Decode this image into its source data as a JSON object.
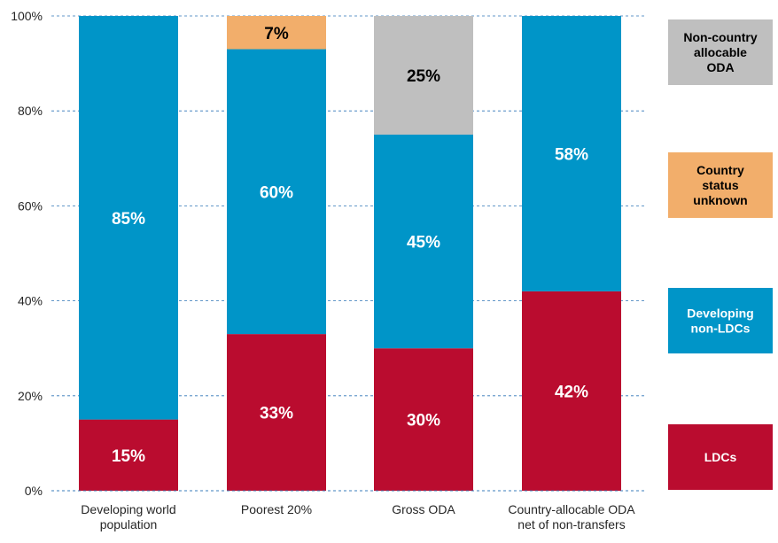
{
  "chart_data": {
    "type": "bar",
    "stacked": true,
    "title": "",
    "xlabel": "",
    "ylabel": "",
    "ylim": [
      0,
      100
    ],
    "yticks": [
      "0%",
      "20%",
      "40%",
      "60%",
      "80%",
      "100%"
    ],
    "grid": "dashed horizontal",
    "legend_position": "right",
    "categories": [
      [
        "Developing world",
        "population"
      ],
      [
        "Poorest 20%"
      ],
      [
        "Gross ODA"
      ],
      [
        "Country-allocable ODA",
        "net of non-transfers"
      ]
    ],
    "series": [
      {
        "name": "LDCs",
        "color": "#BA0C2F",
        "text_color": "#ffffff",
        "values": [
          15,
          33,
          30,
          42
        ],
        "labels": [
          "15%",
          "33%",
          "30%",
          "42%"
        ]
      },
      {
        "name": "Developing non-LDCs",
        "color": "#0095C8",
        "text_color": "#ffffff",
        "values": [
          85,
          60,
          45,
          58
        ],
        "labels": [
          "85%",
          "60%",
          "45%",
          "58%"
        ]
      },
      {
        "name": "Country status unknown",
        "color": "#F2AE6B",
        "text_color": "#000000",
        "values": [
          0,
          7,
          0,
          0
        ],
        "labels": [
          "",
          "7%",
          "",
          ""
        ]
      },
      {
        "name": "Non-country allocable ODA",
        "color": "#BFBFBF",
        "text_color": "#000000",
        "values": [
          0,
          0,
          25,
          0
        ],
        "labels": [
          "",
          "",
          "25%",
          ""
        ]
      }
    ],
    "legend": [
      {
        "lines": [
          "Non-country",
          "allocable",
          "ODA"
        ],
        "color": "#BFBFBF",
        "text_color": "#000000"
      },
      {
        "lines": [
          "Country",
          "status",
          "unknown"
        ],
        "color": "#F2AE6B",
        "text_color": "#000000"
      },
      {
        "lines": [
          "Developing",
          "non-LDCs"
        ],
        "color": "#0095C8",
        "text_color": "#ffffff"
      },
      {
        "lines": [
          "LDCs"
        ],
        "color": "#BA0C2F",
        "text_color": "#ffffff"
      }
    ]
  }
}
